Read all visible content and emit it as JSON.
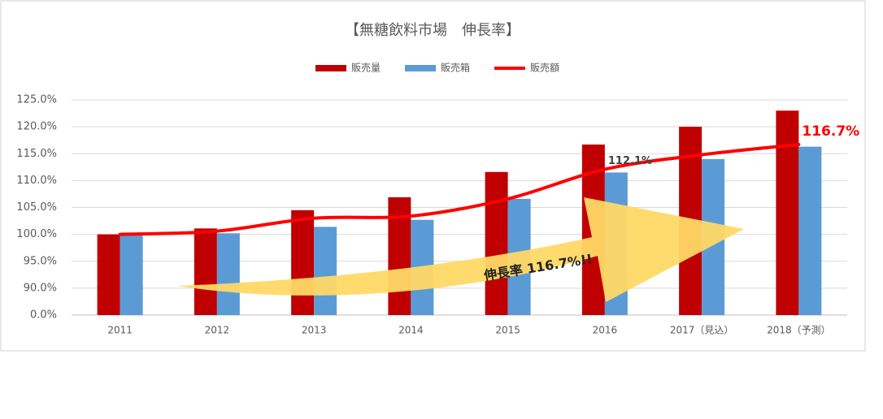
{
  "chart_data": {
    "type": "bar",
    "title": "【無糖飲料市場　伸長率】",
    "categories": [
      "2011",
      "2012",
      "2013",
      "2014",
      "2015",
      "2016",
      "2017（見込）",
      "2018（予測）"
    ],
    "series": [
      {
        "name": "販売量",
        "color": "#c00000",
        "type": "bar",
        "values": [
          100.0,
          101.1,
          104.5,
          106.9,
          111.6,
          116.7,
          120.0,
          123.0
        ]
      },
      {
        "name": "販売箱",
        "color": "#5b9bd5",
        "type": "bar",
        "values": [
          100.0,
          100.2,
          101.4,
          102.7,
          106.6,
          111.5,
          114.0,
          116.3
        ]
      },
      {
        "name": "販売額",
        "color": "#ff0000",
        "type": "line",
        "values": [
          100.0,
          100.6,
          103.0,
          103.4,
          106.6,
          112.1,
          114.8,
          116.7
        ],
        "value_labels": [
          null,
          null,
          null,
          null,
          null,
          "112.1%",
          null,
          "116.7%"
        ]
      }
    ],
    "ylim": [
      0,
      125
    ],
    "yticks": [
      {
        "value": 0,
        "label": "0.0%"
      },
      {
        "value": 90,
        "label": "90.0%"
      },
      {
        "value": 95,
        "label": "95.0%"
      },
      {
        "value": 100,
        "label": "100.0%"
      },
      {
        "value": 105,
        "label": "105.0%"
      },
      {
        "value": 110,
        "label": "110.0%"
      },
      {
        "value": 115,
        "label": "115.0%"
      },
      {
        "value": 120,
        "label": "120.0%"
      },
      {
        "value": 125,
        "label": "125.0%"
      }
    ],
    "grid": true,
    "legend": "top",
    "annotation": "伸長率 116.7%!!"
  }
}
